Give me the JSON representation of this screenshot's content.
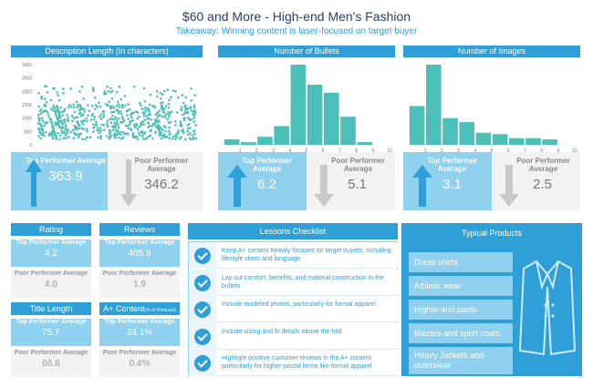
{
  "header": {
    "title": "$60 and More - High-end Men's Fashion",
    "subtitle": "Takeaway: Winning content is laser-focused on target buyer"
  },
  "colors": {
    "accent": "#2f9fd8",
    "light_accent": "#8fd1ee",
    "bar": "#4bbfb8",
    "gray": "#f2f2f2"
  },
  "chart_data": [
    {
      "type": "scatter",
      "title": "Description Length (In characters)",
      "ylim": [
        0,
        3000
      ],
      "y_ticks": [
        "3000",
        "2500",
        "2000",
        "1500",
        "1000",
        "500",
        "0"
      ],
      "note": "dense point cloud, mostly 200–1500, few to ~2200"
    },
    {
      "type": "bar",
      "title": "Number of Bullets",
      "categories": [
        "1",
        "2",
        "3",
        "4",
        "5",
        "6",
        "7",
        "8",
        "9",
        "10"
      ],
      "values": [
        200,
        100,
        300,
        700,
        3000,
        2250,
        1950,
        1050,
        100,
        0
      ],
      "x_ticks": [
        "1",
        "2",
        "3",
        "4",
        "5",
        "6",
        "7",
        "8",
        "9",
        "10"
      ]
    },
    {
      "type": "bar",
      "title": "Number of Images",
      "categories": [
        "1",
        "2",
        "3",
        "4",
        "5",
        "6",
        "7",
        "8",
        "9",
        "10"
      ],
      "values": [
        1450,
        3000,
        1000,
        850,
        450,
        400,
        250,
        250,
        200,
        0
      ],
      "x_ticks": [
        "1",
        "2",
        "3",
        "4",
        "5",
        "6",
        "7",
        "8",
        "9",
        "10"
      ]
    }
  ],
  "performers": [
    {
      "top_label": "Top Performer Average",
      "top_value": "363.9",
      "poor_label": "Poor Performer Average",
      "poor_value": "346.2"
    },
    {
      "top_label": "Top Performer Average",
      "top_value": "6.2",
      "poor_label": "Poor Performer Average",
      "poor_value": "5.1"
    },
    {
      "top_label": "Top Performer Average",
      "top_value": "3.1",
      "poor_label": "Poor Performer Average",
      "poor_value": "2.5"
    }
  ],
  "stats": {
    "rating": {
      "title": "Rating",
      "top_label": "Top Performer Average",
      "top_value": "4.2",
      "poor_label": "Poor Performer Average",
      "poor_value": "4.0"
    },
    "reviews": {
      "title": "Reviews",
      "top_label": "Top Performer Average",
      "top_value": "405.9",
      "poor_label": "Poor Performer Average",
      "poor_value": "1.9"
    },
    "title_length": {
      "title": "Title Length",
      "top_label": "Top Performer Average",
      "top_value": "75.7",
      "poor_label": "Poor Performer Average",
      "poor_value": "66.8"
    },
    "aplus": {
      "title": "A+ Content",
      "title_suffix": "(% of Products)",
      "top_label": "Top Performer Average",
      "top_value": "24.1%",
      "poor_label": "Poor Performer Average",
      "poor_value": "0.4%"
    }
  },
  "checklist": {
    "title": "Lessons Checklist",
    "items": [
      "Keep A+ content heavily focused on target buyers, including lifestyle shots and language",
      "Lay out comfort, benefits, and material construction in the bullets",
      "Include modeled photos, particularly for formal apparel",
      "Include sizing and fit details above the fold",
      "Highlight positive customer reviews in the A+ content, particularly for higher-priced items like formal apparel"
    ]
  },
  "products": {
    "title": "Typical Products",
    "items": [
      "Dress shirts",
      "Athletic wear",
      "Higher-end pants",
      "Blazers and sport coats",
      "Heavy Jackets and outerwear"
    ]
  }
}
